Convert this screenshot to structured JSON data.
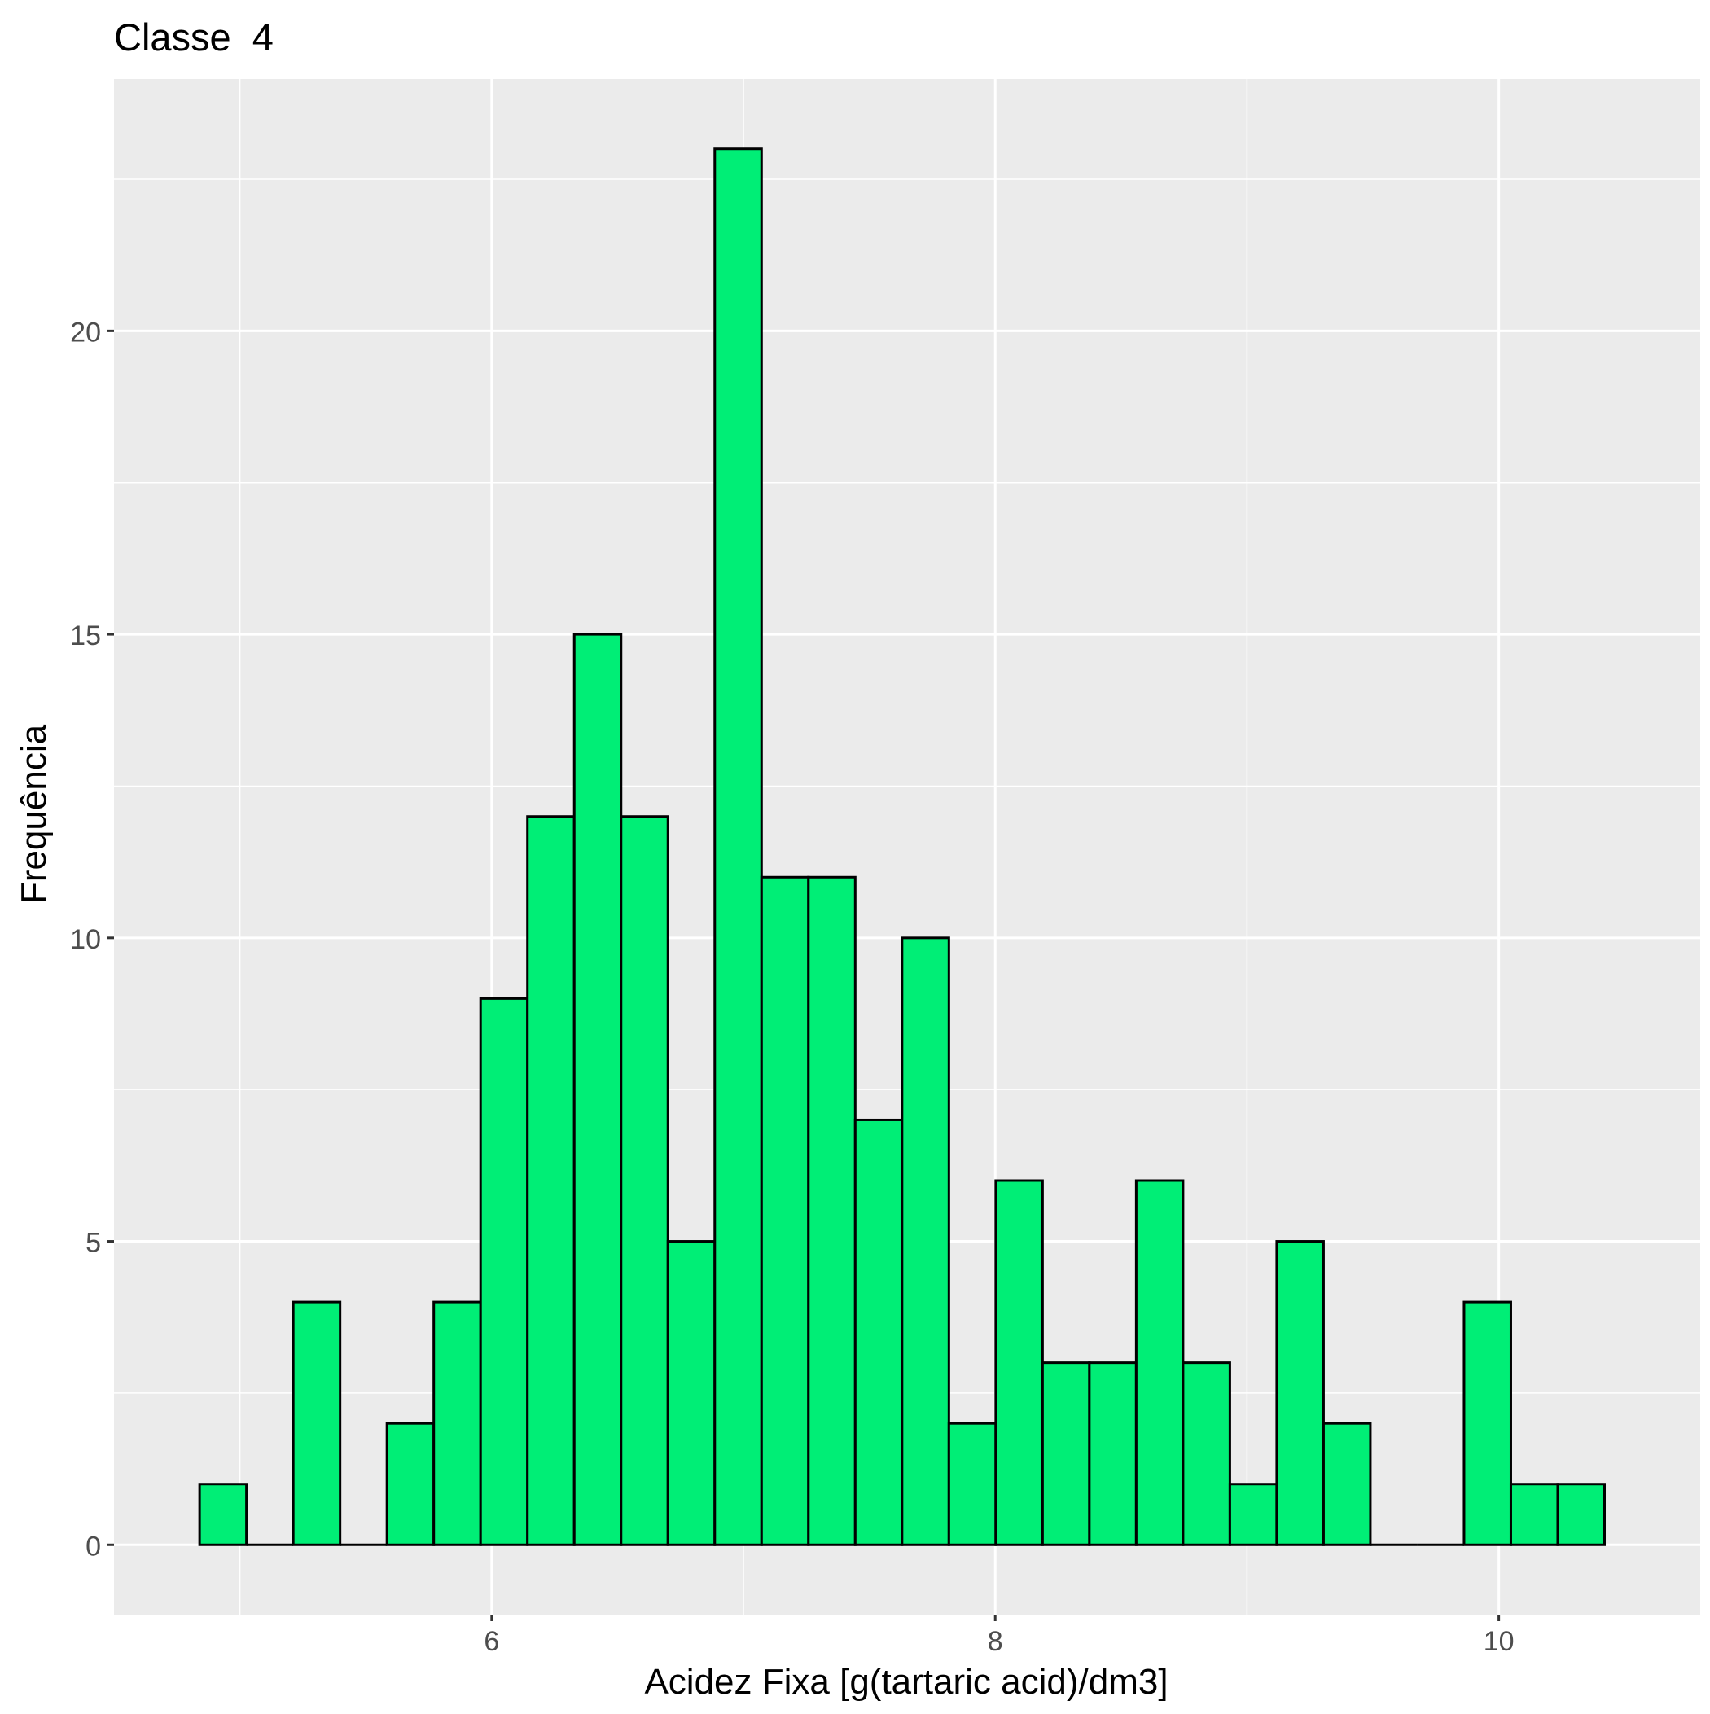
{
  "chart_data": {
    "type": "bar",
    "title": "Classe  4",
    "xlabel": "Acidez Fixa [g(tartaric acid)/dm3]",
    "ylabel": "Frequência",
    "bin_width": 0.186,
    "bins": [
      {
        "x0": 4.84,
        "count": 1
      },
      {
        "x0": 5.026,
        "count": 0
      },
      {
        "x0": 5.212,
        "count": 4
      },
      {
        "x0": 5.398,
        "count": 0
      },
      {
        "x0": 5.584,
        "count": 2
      },
      {
        "x0": 5.77,
        "count": 4
      },
      {
        "x0": 5.956,
        "count": 9
      },
      {
        "x0": 6.142,
        "count": 12
      },
      {
        "x0": 6.328,
        "count": 15
      },
      {
        "x0": 6.514,
        "count": 12
      },
      {
        "x0": 6.7,
        "count": 5
      },
      {
        "x0": 6.886,
        "count": 23
      },
      {
        "x0": 7.072,
        "count": 11
      },
      {
        "x0": 7.258,
        "count": 11
      },
      {
        "x0": 7.444,
        "count": 7
      },
      {
        "x0": 7.63,
        "count": 10
      },
      {
        "x0": 7.816,
        "count": 2
      },
      {
        "x0": 8.002,
        "count": 6
      },
      {
        "x0": 8.188,
        "count": 3
      },
      {
        "x0": 8.374,
        "count": 3
      },
      {
        "x0": 8.56,
        "count": 6
      },
      {
        "x0": 8.746,
        "count": 3
      },
      {
        "x0": 8.932,
        "count": 1
      },
      {
        "x0": 9.118,
        "count": 5
      },
      {
        "x0": 9.304,
        "count": 2
      },
      {
        "x0": 9.49,
        "count": 0
      },
      {
        "x0": 9.676,
        "count": 0
      },
      {
        "x0": 9.862,
        "count": 4
      },
      {
        "x0": 10.048,
        "count": 1
      },
      {
        "x0": 10.234,
        "count": 1
      }
    ],
    "xlim": [
      4.5,
      10.8
    ],
    "ylim": [
      -1.15,
      24.15
    ],
    "xticks": [
      6,
      8,
      10
    ],
    "xtick_labels": [
      "6",
      "8",
      "10"
    ],
    "x_minor_grid": [
      5,
      7,
      9
    ],
    "yticks": [
      0,
      5,
      10,
      15,
      20
    ],
    "ytick_labels": [
      "0",
      "5",
      "10",
      "15",
      "20"
    ],
    "y_minor_grid": [
      2.5,
      7.5,
      12.5,
      17.5,
      22.5
    ],
    "grid": true,
    "legend": "none",
    "colors": {
      "bar_fill": "#00ee76",
      "bar_stroke": "#000000",
      "panel_background": "#ebebeb",
      "grid": "#ffffff",
      "tick_label": "#4d4d4d",
      "text": "#000000"
    }
  }
}
